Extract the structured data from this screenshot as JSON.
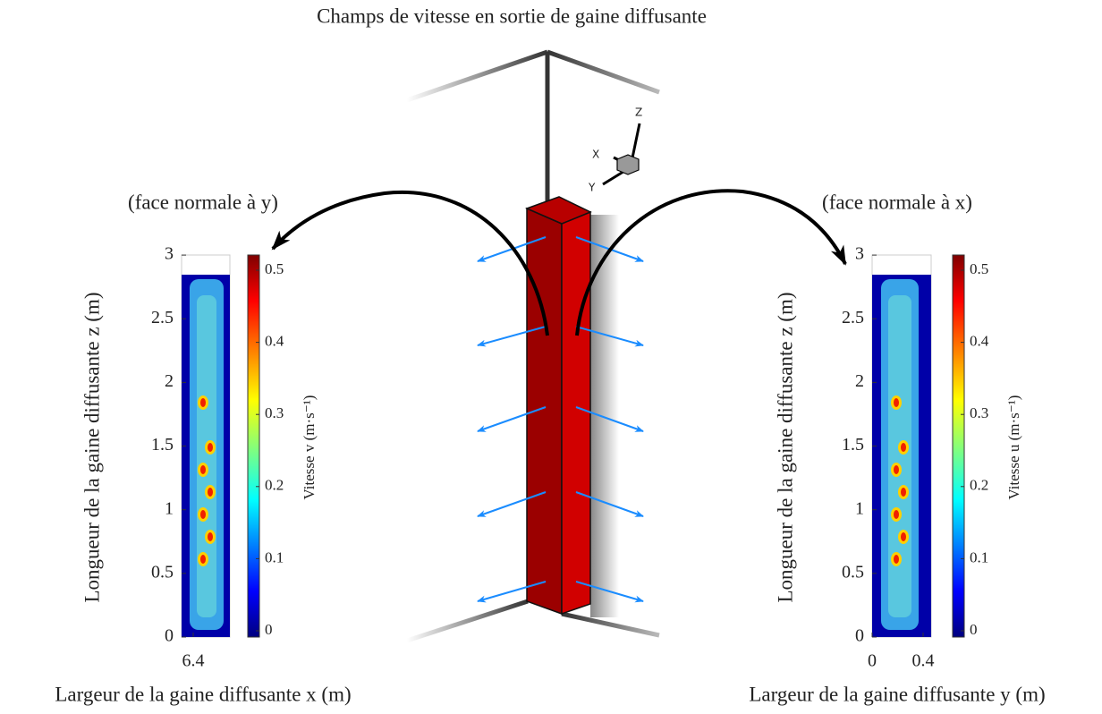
{
  "title": "Champs de vitesse en sortie de gaine diffusante",
  "triad": [
    "X",
    "Y",
    "Z"
  ],
  "panels": [
    {
      "caption": "(face normale à y)",
      "ylabel": "Longueur de la gaine diffusante z (m)",
      "xlabel": "Largeur de la gaine diffusante x (m)",
      "yticks": [
        0,
        0.5,
        1,
        1.5,
        2,
        2.5,
        3
      ],
      "xticks": [
        6.4
      ],
      "colorbar_label": "Vitesse v (m·s⁻¹)",
      "colorbar_ticks": [
        0,
        0.1,
        0.2,
        0.3,
        0.4,
        0.5
      ]
    },
    {
      "caption": "(face normale à x)",
      "ylabel": "Longueur de la gaine diffusante z (m)",
      "xlabel": "Largeur de la gaine diffusante y (m)",
      "yticks": [
        0,
        0.5,
        1,
        1.5,
        2,
        2.5,
        3
      ],
      "xticks": [
        0,
        0.4
      ],
      "colorbar_label": "Vitesse u (m·s⁻¹)",
      "colorbar_ticks": [
        0,
        0.1,
        0.2,
        0.3,
        0.4,
        0.5
      ]
    }
  ]
}
